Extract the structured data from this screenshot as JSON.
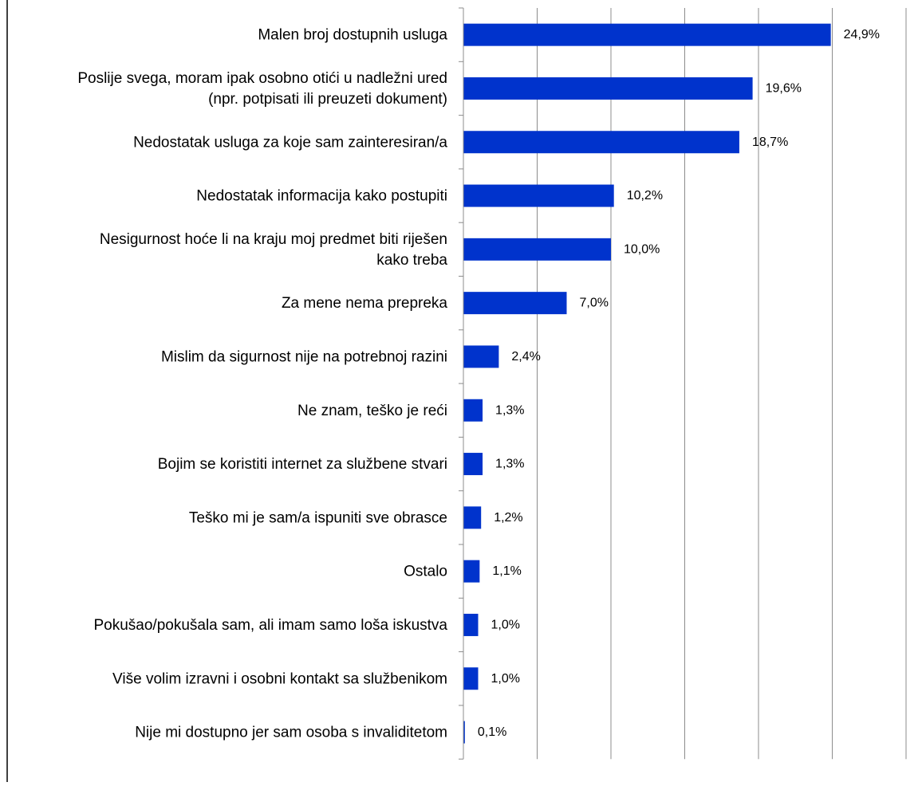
{
  "chart_data": {
    "type": "bar",
    "orientation": "horizontal",
    "title": "",
    "xlabel": "",
    "ylabel": "",
    "xlim": [
      0,
      30
    ],
    "grid": true,
    "legend": "none",
    "bar_color": "#0033CC",
    "categories": [
      [
        "Malen broj dostupnih usluga"
      ],
      [
        "Poslije svega, moram ipak osobno otići u nadležni ured",
        "(npr. potpisati ili preuzeti dokument)"
      ],
      [
        "Nedostatak usluga za koje sam zainteresiran/a"
      ],
      [
        "Nedostatak informacija kako postupiti"
      ],
      [
        "Nesigurnost hoće li na kraju moj predmet biti riješen",
        "kako treba"
      ],
      [
        "Za mene nema prepreka"
      ],
      [
        "Mislim da sigurnost nije na potrebnoj razini"
      ],
      [
        "Ne znam, teško je reći"
      ],
      [
        "Bojim se koristiti internet za službene stvari"
      ],
      [
        "Teško mi je sam/a ispuniti sve obrasce"
      ],
      [
        "Ostalo"
      ],
      [
        "Pokušao/pokušala sam, ali imam samo loša iskustva"
      ],
      [
        "Više volim izravni i osobni kontakt sa službenikom"
      ],
      [
        "Nije mi dostupno jer sam osoba s invaliditetom"
      ]
    ],
    "values": [
      24.9,
      19.6,
      18.7,
      10.2,
      10.0,
      7.0,
      2.4,
      1.3,
      1.3,
      1.2,
      1.1,
      1.0,
      1.0,
      0.1
    ],
    "data_labels": [
      "24,9%",
      "19,6%",
      "18,7%",
      "10,2%",
      "10,0%",
      "7,0%",
      "2,4%",
      "1,3%",
      "1,3%",
      "1,2%",
      "1,1%",
      "1,0%",
      "1,0%",
      "0,1%"
    ]
  }
}
